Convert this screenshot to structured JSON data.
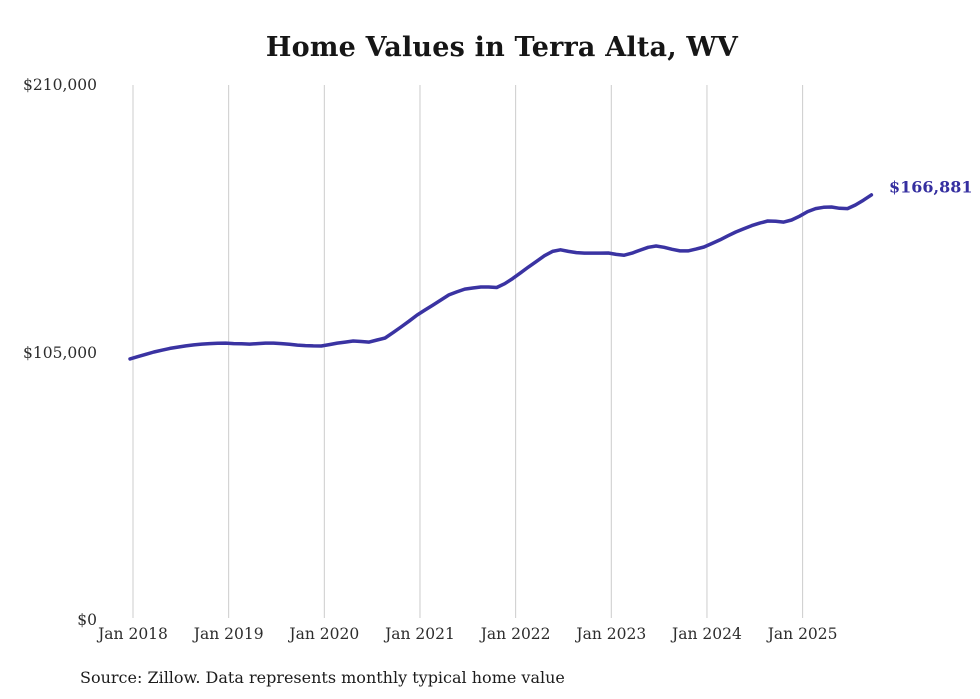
{
  "chart_data": {
    "type": "line",
    "title": "Home Values in Terra Alta, WV",
    "source": "Source: Zillow. Data represents monthly typical home value",
    "xlabel": "",
    "ylabel": "",
    "ylim": [
      0,
      210000
    ],
    "grid": "vertical-only",
    "legend": "none",
    "colors": {
      "line": "#3a33a2",
      "end_label": "#352fa0",
      "gridline": "#cccccc",
      "axis_text": "#2d2d2d",
      "title_text": "#161616"
    },
    "y_ticks": [
      {
        "label": "$0",
        "value": 0
      },
      {
        "label": "$105,000",
        "value": 105000
      },
      {
        "label": "$210,000",
        "value": 210000
      }
    ],
    "x_tick_labels": [
      "Jan 2018",
      "Jan 2019",
      "Jan 2020",
      "Jan 2021",
      "Jan 2022",
      "Jan 2023",
      "Jan 2024",
      "Jan 2025"
    ],
    "end_label": "$166,881",
    "final_value": 166881,
    "series": [
      {
        "name": "Monthly typical home value",
        "frequency": "monthly",
        "start_month": "2018-01",
        "end_month": "2025-10",
        "values": [
          102500,
          103400,
          104300,
          105200,
          105900,
          106600,
          107100,
          107600,
          108000,
          108300,
          108500,
          108600,
          108700,
          108500,
          108400,
          108300,
          108500,
          108700,
          108700,
          108500,
          108200,
          107900,
          107700,
          107600,
          107550,
          108100,
          108700,
          109100,
          109500,
          109300,
          109100,
          109900,
          110700,
          112800,
          115000,
          117300,
          119700,
          121700,
          123600,
          125600,
          127600,
          128800,
          129900,
          130300,
          130700,
          130700,
          130500,
          132000,
          134000,
          136300,
          138600,
          140800,
          143000,
          144700,
          145300,
          144700,
          144200,
          144000,
          144000,
          144000,
          144050,
          143500,
          143200,
          144000,
          145200,
          146300,
          146800,
          146300,
          145500,
          144900,
          144900,
          145600,
          146400,
          147800,
          149200,
          150800,
          152300,
          153600,
          154800,
          155800,
          156600,
          156500,
          156200,
          157000,
          158500,
          160300,
          161500,
          162000,
          162100,
          161600,
          161500,
          162900,
          164800,
          166881
        ]
      }
    ]
  }
}
